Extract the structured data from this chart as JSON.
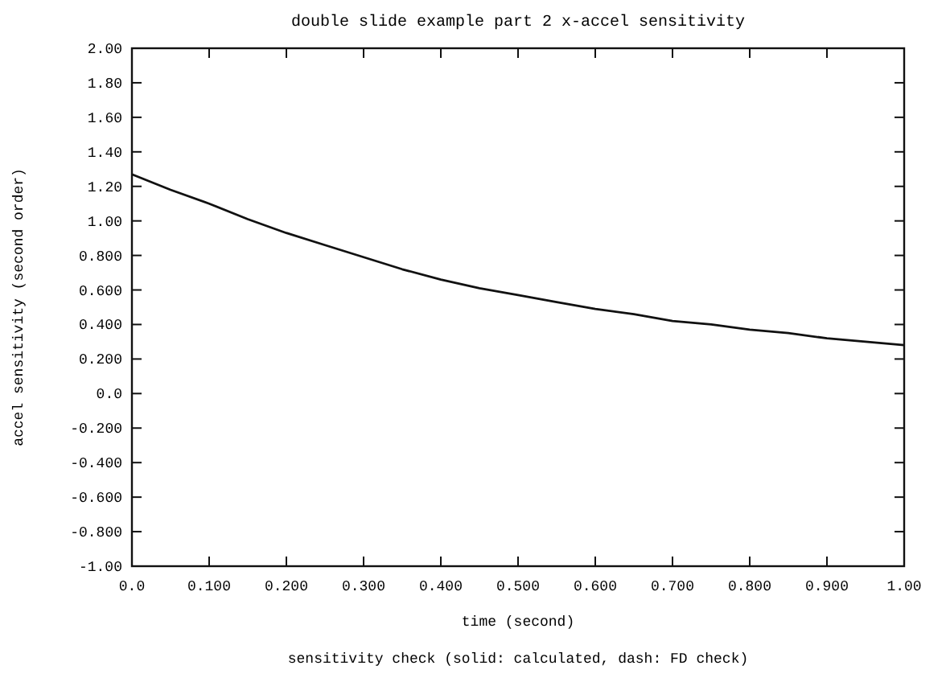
{
  "chart_data": {
    "type": "line",
    "title": "double slide example part 2 x-accel    sensitivity",
    "xlabel": "time (second)",
    "ylabel": "accel sensitivity (second order)",
    "annotations": [
      "sensitivity check (solid: calculated, dash: FD check)"
    ],
    "x": [
      0,
      0.05,
      0.1,
      0.15,
      0.2,
      0.25,
      0.3,
      0.35,
      0.4,
      0.45,
      0.5,
      0.55,
      0.6,
      0.65,
      0.7,
      0.75,
      0.8,
      0.85,
      0.9,
      0.95,
      1.0
    ],
    "series": [
      {
        "color": "#111111",
        "values": [
          1.27,
          1.18,
          1.1,
          1.01,
          0.93,
          0.86,
          0.79,
          0.72,
          0.66,
          0.61,
          0.57,
          0.53,
          0.49,
          0.46,
          0.42,
          0.4,
          0.37,
          0.35,
          0.32,
          0.3,
          0.28
        ]
      }
    ],
    "line_style": "solid",
    "marker": "none",
    "grid": false,
    "xlim": [
      0,
      1
    ],
    "ylim": [
      -1,
      2
    ],
    "xticks": [
      {
        "value": 0,
        "label": "0.0"
      },
      {
        "value": 0.1,
        "label": "0.100"
      },
      {
        "value": 0.2,
        "label": "0.200"
      },
      {
        "value": 0.3,
        "label": "0.300"
      },
      {
        "value": 0.4,
        "label": "0.400"
      },
      {
        "value": 0.5,
        "label": "0.500"
      },
      {
        "value": 0.6,
        "label": "0.600"
      },
      {
        "value": 0.7,
        "label": "0.700"
      },
      {
        "value": 0.8,
        "label": "0.800"
      },
      {
        "value": 0.9,
        "label": "0.900"
      },
      {
        "value": 1,
        "label": "1.00"
      }
    ],
    "yticks": [
      {
        "value": 2,
        "label": "2.00"
      },
      {
        "value": 1.8,
        "label": "1.80"
      },
      {
        "value": 1.6,
        "label": "1.60"
      },
      {
        "value": 1.4,
        "label": "1.40"
      },
      {
        "value": 1.2,
        "label": "1.20"
      },
      {
        "value": 1,
        "label": "1.00"
      },
      {
        "value": 0.8,
        "label": "0.800"
      },
      {
        "value": 0.6,
        "label": "0.600"
      },
      {
        "value": 0.4,
        "label": "0.400"
      },
      {
        "value": 0.2,
        "label": "0.200"
      },
      {
        "value": 0,
        "label": "0.0"
      },
      {
        "value": -0.2,
        "label": "-0.200"
      },
      {
        "value": -0.4,
        "label": "-0.400"
      },
      {
        "value": -0.6,
        "label": "-0.600"
      },
      {
        "value": -0.8,
        "label": "-0.800"
      },
      {
        "value": -1,
        "label": "-1.00"
      }
    ]
  }
}
